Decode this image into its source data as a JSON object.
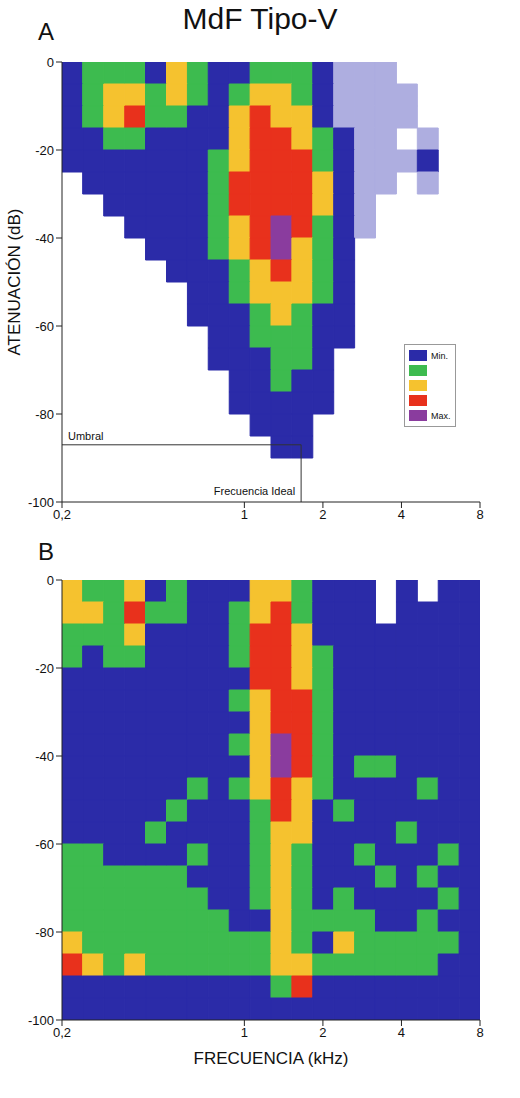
{
  "title": "MdF Tipo-V",
  "colorbar": {
    "range": [
      0,
      5
    ],
    "ticks": [
      {
        "value": 1,
        "label": "Min."
      },
      {
        "value": 5,
        "label": "Max."
      }
    ],
    "colors": [
      "#aeaee0",
      "#2b2ba8",
      "#3dbb4f",
      "#f5c22f",
      "#e8311c",
      "#8a3c9e"
    ]
  },
  "chart_data": [
    {
      "type": "heatmap",
      "panel": "A",
      "y_label": "ATENUACIÓN (dB)",
      "log": "x",
      "legend": "lower right",
      "xlim": [
        0.2,
        8
      ],
      "ylim": [
        -100,
        0
      ],
      "xticks": [
        {
          "value": 0.2,
          "label": "0,2"
        },
        1,
        2,
        4,
        8
      ],
      "yticks": [
        0,
        -20,
        -40,
        -60,
        -80,
        -100
      ],
      "x_edges": [
        0.2,
        0.24,
        0.289,
        0.348,
        0.418,
        0.503,
        0.605,
        0.727,
        0.875,
        1.052,
        1.265,
        1.521,
        1.829,
        2.2,
        2.646,
        3.181,
        3.826,
        4.601,
        5.533,
        6.654,
        8
      ],
      "y_edges": [
        0,
        -5,
        -10,
        -15,
        -20,
        -25,
        -30,
        -35,
        -40,
        -45,
        -50,
        -55,
        -60,
        -65,
        -70,
        -75,
        -80,
        -85,
        -90,
        -95,
        -100
      ],
      "cells": [
        [
          1,
          2,
          2,
          2,
          1,
          3,
          2,
          1,
          1,
          2,
          2,
          2,
          1,
          0,
          0,
          0,
          null,
          null,
          null,
          null
        ],
        [
          1,
          2,
          3,
          3,
          2,
          3,
          2,
          1,
          2,
          3,
          3,
          2,
          1,
          0,
          0,
          0,
          0,
          null,
          null,
          null
        ],
        [
          1,
          2,
          3,
          4,
          2,
          2,
          1,
          1,
          3,
          4,
          3,
          3,
          1,
          0,
          0,
          0,
          0,
          null,
          null,
          null
        ],
        [
          1,
          1,
          2,
          2,
          1,
          1,
          1,
          1,
          3,
          4,
          4,
          3,
          2,
          1,
          0,
          0,
          null,
          0,
          null,
          null
        ],
        [
          1,
          1,
          1,
          1,
          1,
          1,
          1,
          2,
          3,
          4,
          4,
          4,
          2,
          1,
          0,
          0,
          0,
          1,
          null,
          null
        ],
        [
          null,
          1,
          1,
          1,
          1,
          1,
          1,
          2,
          4,
          4,
          4,
          4,
          3,
          1,
          0,
          0,
          null,
          0,
          null,
          null
        ],
        [
          null,
          null,
          1,
          1,
          1,
          1,
          1,
          2,
          4,
          4,
          4,
          4,
          3,
          1,
          0,
          null,
          null,
          null,
          null,
          null
        ],
        [
          null,
          null,
          null,
          1,
          1,
          1,
          1,
          2,
          3,
          4,
          5,
          4,
          2,
          1,
          0,
          null,
          null,
          null,
          null,
          null
        ],
        [
          null,
          null,
          null,
          null,
          1,
          1,
          1,
          2,
          3,
          4,
          5,
          3,
          2,
          1,
          null,
          null,
          null,
          null,
          null,
          null
        ],
        [
          null,
          null,
          null,
          null,
          null,
          1,
          1,
          1,
          2,
          3,
          4,
          3,
          2,
          1,
          null,
          null,
          null,
          null,
          null,
          null
        ],
        [
          null,
          null,
          null,
          null,
          null,
          null,
          1,
          1,
          2,
          3,
          3,
          3,
          2,
          1,
          null,
          null,
          null,
          null,
          null,
          null
        ],
        [
          null,
          null,
          null,
          null,
          null,
          null,
          1,
          1,
          1,
          2,
          3,
          2,
          1,
          1,
          null,
          null,
          null,
          null,
          null,
          null
        ],
        [
          null,
          null,
          null,
          null,
          null,
          null,
          null,
          1,
          1,
          2,
          2,
          2,
          1,
          1,
          null,
          null,
          null,
          null,
          null,
          null
        ],
        [
          null,
          null,
          null,
          null,
          null,
          null,
          null,
          1,
          1,
          1,
          2,
          2,
          1,
          null,
          null,
          null,
          null,
          null,
          null,
          null
        ],
        [
          null,
          null,
          null,
          null,
          null,
          null,
          null,
          null,
          1,
          1,
          2,
          1,
          1,
          null,
          null,
          null,
          null,
          null,
          null,
          null
        ],
        [
          null,
          null,
          null,
          null,
          null,
          null,
          null,
          null,
          1,
          1,
          1,
          1,
          1,
          null,
          null,
          null,
          null,
          null,
          null,
          null
        ],
        [
          null,
          null,
          null,
          null,
          null,
          null,
          null,
          null,
          null,
          1,
          1,
          1,
          null,
          null,
          null,
          null,
          null,
          null,
          null,
          null
        ],
        [
          null,
          null,
          null,
          null,
          null,
          null,
          null,
          null,
          null,
          null,
          1,
          1,
          null,
          null,
          null,
          null,
          null,
          null,
          null,
          null
        ],
        [
          null,
          null,
          null,
          null,
          null,
          null,
          null,
          null,
          null,
          null,
          null,
          null,
          null,
          null,
          null,
          null,
          null,
          null,
          null,
          null
        ],
        [
          null,
          null,
          null,
          null,
          null,
          null,
          null,
          null,
          null,
          null,
          null,
          null,
          null,
          null,
          null,
          null,
          null,
          null,
          null,
          null
        ]
      ],
      "annotations": [
        {
          "text": "Umbral",
          "x": 0.2,
          "y": -87
        },
        {
          "text": "Frecuencia Ideal",
          "x": 1.65,
          "y": -87
        }
      ]
    },
    {
      "type": "heatmap",
      "panel": "B",
      "x_label": "FRECUENCIA (kHz)",
      "log": "x",
      "xlim": [
        0.2,
        8
      ],
      "ylim": [
        -100,
        0
      ],
      "xticks": [
        {
          "value": 0.2,
          "label": "0,2"
        },
        1,
        2,
        4,
        8
      ],
      "yticks": [
        0,
        -20,
        -40,
        -60,
        -80,
        -100
      ],
      "x_edges": [
        0.2,
        0.24,
        0.289,
        0.348,
        0.418,
        0.503,
        0.605,
        0.727,
        0.875,
        1.052,
        1.265,
        1.521,
        1.829,
        2.2,
        2.646,
        3.181,
        3.826,
        4.601,
        5.533,
        6.654,
        8
      ],
      "y_edges": [
        0,
        -5,
        -10,
        -15,
        -20,
        -25,
        -30,
        -35,
        -40,
        -45,
        -50,
        -55,
        -60,
        -65,
        -70,
        -75,
        -80,
        -85,
        -90,
        -95,
        -100
      ],
      "cells": [
        [
          3,
          2,
          2,
          3,
          1,
          2,
          1,
          1,
          1,
          3,
          3,
          2,
          1,
          1,
          1,
          null,
          1,
          null,
          1,
          1
        ],
        [
          3,
          3,
          2,
          4,
          2,
          2,
          1,
          1,
          2,
          3,
          4,
          2,
          1,
          1,
          1,
          null,
          1,
          1,
          1,
          1
        ],
        [
          2,
          2,
          2,
          3,
          1,
          1,
          1,
          1,
          2,
          4,
          4,
          3,
          1,
          1,
          1,
          1,
          1,
          1,
          1,
          1
        ],
        [
          2,
          1,
          2,
          2,
          1,
          1,
          1,
          1,
          2,
          4,
          4,
          3,
          2,
          1,
          1,
          1,
          1,
          1,
          1,
          1
        ],
        [
          1,
          1,
          1,
          1,
          1,
          1,
          1,
          1,
          1,
          4,
          4,
          3,
          2,
          1,
          1,
          1,
          1,
          1,
          1,
          1
        ],
        [
          1,
          1,
          1,
          1,
          1,
          1,
          1,
          1,
          2,
          3,
          4,
          4,
          2,
          1,
          1,
          1,
          1,
          1,
          1,
          1
        ],
        [
          1,
          1,
          1,
          1,
          1,
          1,
          1,
          1,
          1,
          3,
          4,
          4,
          2,
          1,
          1,
          1,
          1,
          1,
          1,
          1
        ],
        [
          1,
          1,
          1,
          1,
          1,
          1,
          1,
          1,
          2,
          3,
          5,
          4,
          2,
          1,
          1,
          1,
          1,
          1,
          1,
          1
        ],
        [
          1,
          1,
          1,
          1,
          1,
          1,
          1,
          1,
          1,
          3,
          5,
          4,
          2,
          1,
          2,
          2,
          1,
          1,
          1,
          1
        ],
        [
          1,
          1,
          1,
          1,
          1,
          1,
          2,
          1,
          2,
          3,
          4,
          3,
          2,
          1,
          1,
          1,
          1,
          2,
          1,
          1
        ],
        [
          1,
          1,
          1,
          1,
          1,
          2,
          1,
          1,
          1,
          2,
          4,
          3,
          1,
          2,
          1,
          1,
          1,
          1,
          1,
          1
        ],
        [
          1,
          1,
          1,
          1,
          2,
          1,
          1,
          1,
          1,
          2,
          3,
          3,
          1,
          1,
          1,
          1,
          2,
          1,
          1,
          1
        ],
        [
          2,
          2,
          1,
          1,
          1,
          1,
          2,
          1,
          1,
          2,
          3,
          2,
          1,
          1,
          2,
          1,
          1,
          1,
          2,
          1
        ],
        [
          2,
          2,
          2,
          2,
          2,
          2,
          1,
          1,
          1,
          2,
          3,
          2,
          1,
          1,
          1,
          2,
          1,
          2,
          1,
          1
        ],
        [
          2,
          2,
          2,
          2,
          2,
          2,
          2,
          1,
          1,
          2,
          3,
          2,
          1,
          2,
          1,
          1,
          1,
          1,
          2,
          1
        ],
        [
          2,
          2,
          2,
          2,
          2,
          2,
          2,
          2,
          1,
          1,
          3,
          2,
          2,
          2,
          2,
          1,
          1,
          2,
          1,
          1
        ],
        [
          3,
          2,
          2,
          2,
          2,
          2,
          2,
          2,
          2,
          2,
          3,
          2,
          1,
          3,
          2,
          2,
          2,
          2,
          2,
          1
        ],
        [
          4,
          3,
          2,
          3,
          2,
          2,
          2,
          2,
          2,
          2,
          3,
          3,
          2,
          2,
          2,
          2,
          2,
          2,
          1,
          1
        ],
        [
          1,
          1,
          1,
          1,
          1,
          1,
          1,
          1,
          1,
          1,
          2,
          4,
          1,
          1,
          1,
          1,
          1,
          1,
          1,
          1
        ],
        [
          1,
          1,
          1,
          1,
          1,
          1,
          1,
          1,
          1,
          1,
          1,
          1,
          1,
          1,
          1,
          1,
          1,
          1,
          1,
          1
        ]
      ]
    }
  ]
}
